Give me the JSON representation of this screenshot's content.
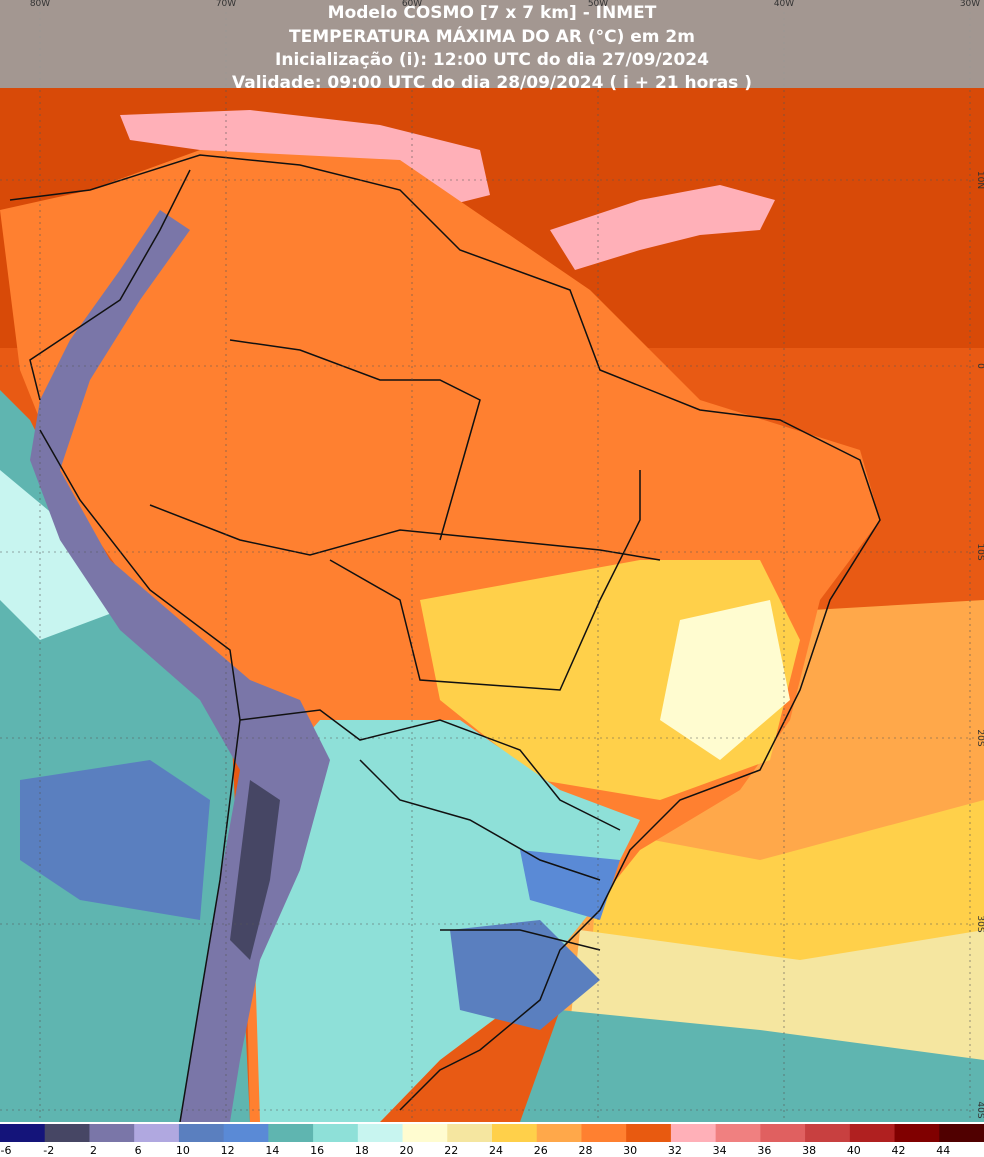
{
  "header": {
    "lines": [
      "Modelo COSMO [7 x 7 km] - INMET",
      "TEMPERATURA MÁXIMA DO AR (°C) em 2m",
      "Inicialização (i): 12:00 UTC do dia 27/09/2024",
      "Validade: 09:00 UTC do dia 28/09/2024 ( i + 21 horas )"
    ]
  },
  "longitudes": [
    "80W",
    "70W",
    "60W",
    "50W",
    "40W",
    "30W"
  ],
  "latitudes": [
    "10N",
    "0",
    "10S",
    "20S",
    "30S",
    "40S"
  ],
  "legend": {
    "labels": [
      "-6",
      "-2",
      "2",
      "6",
      "10",
      "12",
      "14",
      "16",
      "18",
      "20",
      "22",
      "24",
      "26",
      "28",
      "30",
      "32",
      "34",
      "36",
      "38",
      "40",
      "42",
      "44"
    ],
    "colors": [
      "#14147a",
      "#464664",
      "#7a76a8",
      "#b0a8e0",
      "#5a7fbf",
      "#5a8ad6",
      "#5fb5b0",
      "#8ee0d8",
      "#c8f5f0",
      "#fffcd0",
      "#f5e6a0",
      "#ffd04a",
      "#ffa84a",
      "#ff8030",
      "#e85a10",
      "#ffb0b8",
      "#f08080",
      "#e06060",
      "#c84040",
      "#b02020",
      "#800000",
      "#500000"
    ]
  }
}
